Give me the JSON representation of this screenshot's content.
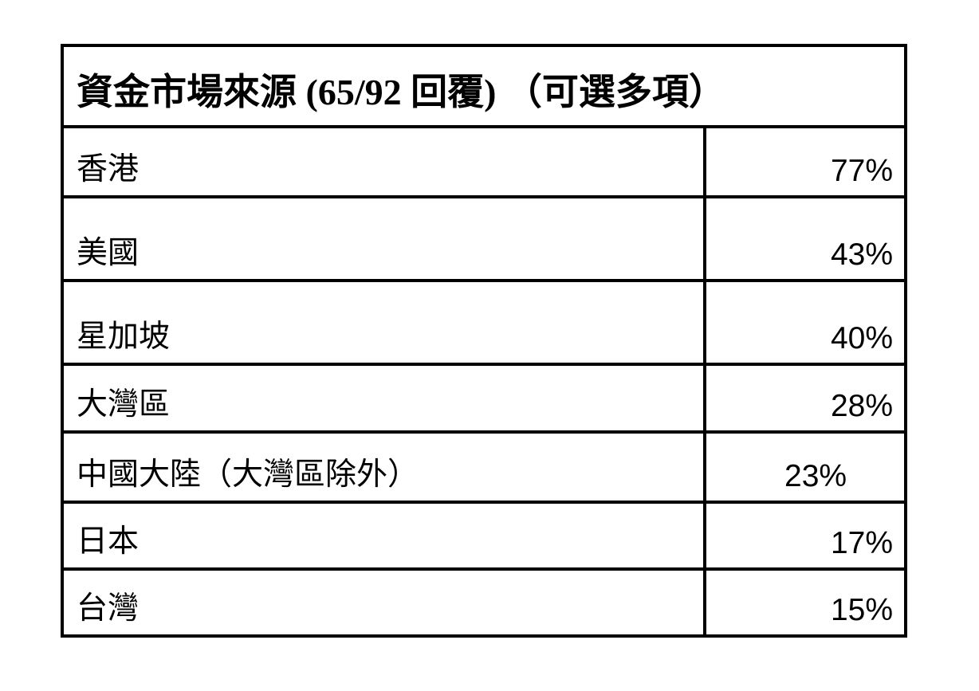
{
  "title": "資金市場來源 (65/92 回覆) （可選多項）",
  "rows": [
    {
      "label": "香港",
      "value": "77%"
    },
    {
      "label": "美國",
      "value": "43%"
    },
    {
      "label": "星加坡",
      "value": "40%"
    },
    {
      "label": "大灣區",
      "value": "28%"
    },
    {
      "label": "中國大陸（大灣區除外）",
      "value": "23%"
    },
    {
      "label": "日本",
      "value": "17%"
    },
    {
      "label": "台灣",
      "value": "15%"
    }
  ]
}
